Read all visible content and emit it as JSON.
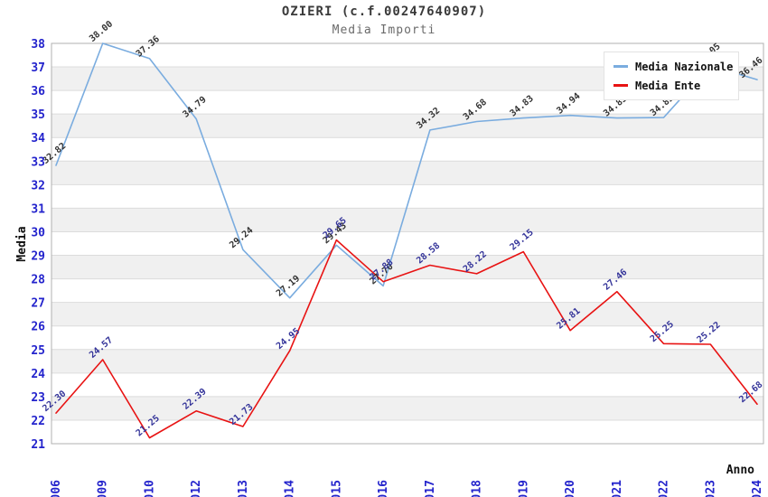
{
  "header": {
    "title": "OZIERI (c.f.00247640907)",
    "subtitle": "Media Importi"
  },
  "legend": {
    "position": "top-right",
    "items": [
      {
        "label": "Media Nazionale",
        "color": "#7aacdf"
      },
      {
        "label": "Media Ente",
        "color": "#e81313"
      }
    ]
  },
  "axes": {
    "y_label": "Media",
    "x_label": "Anno",
    "y_min": 21,
    "y_max": 38,
    "y_ticks": [
      21,
      22,
      23,
      24,
      25,
      26,
      27,
      28,
      29,
      30,
      31,
      32,
      33,
      34,
      35,
      36,
      37,
      38
    ],
    "tick_color": "#2323cc",
    "axis_title_color": "#111111",
    "band_color": "#f0f0f0",
    "gridline_color": "#dcdcdc",
    "border_color": "#b0b0b0"
  },
  "chart_data": {
    "type": "line",
    "title": "OZIERI (c.f.00247640907)",
    "subtitle": "Media Importi",
    "xlabel": "Anno",
    "ylabel": "Media",
    "ylim": [
      21,
      38
    ],
    "grid": "horizontal-bands-alternating",
    "legend_position": "top-right",
    "categories": [
      "2006",
      "2009",
      "2010",
      "2012",
      "2013",
      "2014",
      "2015",
      "2016",
      "2017",
      "2018",
      "2019",
      "2020",
      "2021",
      "2022",
      "2023",
      "2024"
    ],
    "series": [
      {
        "name": "Media Nazionale",
        "color": "#7aacdf",
        "label_color": "#333333",
        "values": [
          32.82,
          38.0,
          37.36,
          34.79,
          29.24,
          27.19,
          29.43,
          27.7,
          34.32,
          34.68,
          34.83,
          34.94,
          34.83,
          34.85,
          37.05,
          36.46
        ]
      },
      {
        "name": "Media Ente",
        "color": "#e81313",
        "label_color": "#333399",
        "values": [
          22.3,
          24.57,
          21.25,
          22.39,
          21.73,
          24.95,
          29.65,
          27.88,
          28.58,
          28.22,
          29.15,
          25.81,
          27.46,
          25.25,
          25.22,
          22.68
        ]
      }
    ]
  }
}
